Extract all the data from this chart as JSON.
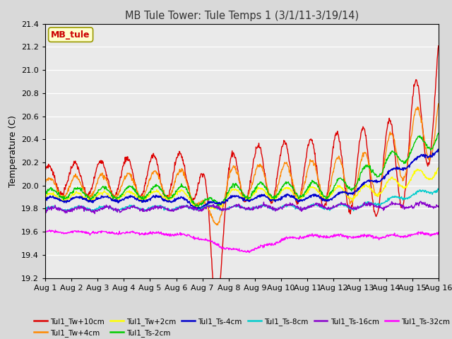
{
  "title": "MB Tule Tower: Tule Temps 1 (3/1/11-3/19/14)",
  "ylabel": "Temperature (C)",
  "ylim": [
    19.2,
    21.4
  ],
  "yticks": [
    19.2,
    19.4,
    19.6,
    19.8,
    20.0,
    20.2,
    20.4,
    20.6,
    20.8,
    21.0,
    21.2,
    21.4
  ],
  "xtick_labels": [
    "Aug 1",
    "Aug 2",
    "Aug 3",
    "Aug 4",
    "Aug 5",
    "Aug 6",
    "Aug 7",
    "Aug 8",
    "Aug 9",
    "Aug 10",
    "Aug 11",
    "Aug 12",
    "Aug 13",
    "Aug 14",
    "Aug 15",
    "Aug 16"
  ],
  "series": [
    {
      "label": "Tul1_Tw+10cm",
      "color": "#dd0000",
      "lw": 1.0
    },
    {
      "label": "Tul1_Tw+4cm",
      "color": "#ff8800",
      "lw": 1.0
    },
    {
      "label": "Tul1_Tw+2cm",
      "color": "#ffff00",
      "lw": 1.0
    },
    {
      "label": "Tul1_Ts-2cm",
      "color": "#00cc00",
      "lw": 1.0
    },
    {
      "label": "Tul1_Ts-4cm",
      "color": "#0000cc",
      "lw": 1.2
    },
    {
      "label": "Tul1_Ts-8cm",
      "color": "#00cccc",
      "lw": 1.0
    },
    {
      "label": "Tul1_Ts-16cm",
      "color": "#8800cc",
      "lw": 1.0
    },
    {
      "label": "Tul1_Ts-32cm",
      "color": "#ff00ff",
      "lw": 1.0
    }
  ],
  "watermark_text": "MB_tule",
  "watermark_color": "#cc0000",
  "bg_color": "#d9d9d9",
  "plot_bg": "#eaeaea",
  "figsize": [
    6.4,
    4.8
  ],
  "dpi": 100
}
